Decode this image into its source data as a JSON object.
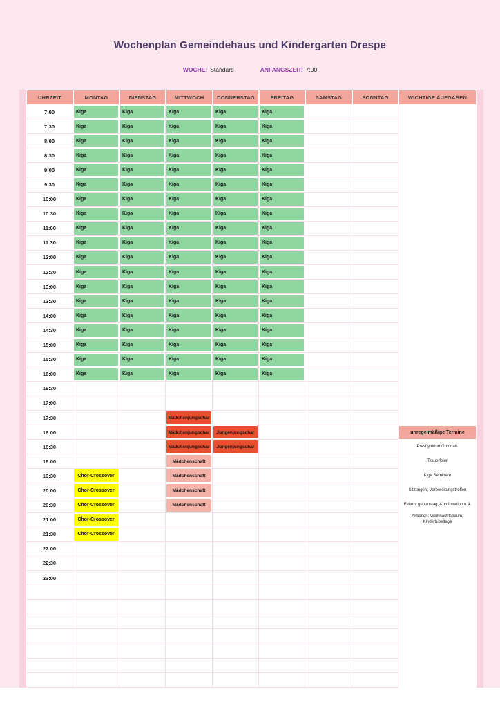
{
  "header": {
    "title": "Wochenplan Gemeindehaus und Kindergarten Drespe",
    "week_label": "WOCHE:",
    "week_value": "Standard",
    "start_label": "ANFANGSZEIT:",
    "start_value": "7:00"
  },
  "colors": {
    "page_bg": "#fce7ef",
    "edge_strip": "#f9d4e0",
    "header_bg": "#f2a69c",
    "grid_line": "#f7dde6",
    "kiga": "#8fd5a0",
    "jungschar": "#e74f2f",
    "maedchenschaft": "#f5b2a9",
    "chor": "#ffff00",
    "title_color": "#4a3a66",
    "label_color": "#9143a9"
  },
  "table": {
    "columns": [
      "UHRZEIT",
      "MONTAG",
      "DIENSTAG",
      "MITTWOCH",
      "DONNERSTAG",
      "FREITAG",
      "SAMSTAG",
      "SONNTAG",
      "WICHTIGE AUFGABEN"
    ],
    "times": [
      "7:00",
      "7:30",
      "8:00",
      "8:30",
      "9:00",
      "9:30",
      "10:00",
      "10:30",
      "11:00",
      "11:30",
      "12:00",
      "12:30",
      "13:00",
      "13:30",
      "14:00",
      "14:30",
      "15:00",
      "15:30",
      "16:00",
      "16:30",
      "17:00",
      "17:30",
      "18:00",
      "18:30",
      "19:00",
      "19:30",
      "20:00",
      "20:30",
      "21:00",
      "21:30",
      "22:00",
      "22:30",
      "23:00"
    ],
    "trailing_empty_rows": 7,
    "kiga": {
      "label": "Kiga",
      "days": [
        "MONTAG",
        "DIENSTAG",
        "MITTWOCH",
        "DONNERSTAG",
        "FREITAG"
      ],
      "from_time": "7:00",
      "to_time": "16:00"
    },
    "events": [
      {
        "time": "17:30",
        "day": "MITTWOCH",
        "label": "Mädchenjungschar",
        "type": "jungschar"
      },
      {
        "time": "18:00",
        "day": "MITTWOCH",
        "label": "Mädchenjungschar",
        "type": "jungschar"
      },
      {
        "time": "18:00",
        "day": "DONNERSTAG",
        "label": "Jungenjungschar",
        "type": "jungschar"
      },
      {
        "time": "18:30",
        "day": "MITTWOCH",
        "label": "Mädchenjungschar",
        "type": "jungschar"
      },
      {
        "time": "18:30",
        "day": "DONNERSTAG",
        "label": "Jungenjungschar",
        "type": "jungschar"
      },
      {
        "time": "19:00",
        "day": "MITTWOCH",
        "label": "Mädchenschaft",
        "type": "maedchenschaft"
      },
      {
        "time": "19:30",
        "day": "MONTAG",
        "label": "Chor-Crossover",
        "type": "chor"
      },
      {
        "time": "19:30",
        "day": "MITTWOCH",
        "label": "Mädchenschaft",
        "type": "maedchenschaft"
      },
      {
        "time": "20:00",
        "day": "MONTAG",
        "label": "Chor-Crossover",
        "type": "chor"
      },
      {
        "time": "20:00",
        "day": "MITTWOCH",
        "label": "Mädchenschaft",
        "type": "maedchenschaft"
      },
      {
        "time": "20:30",
        "day": "MONTAG",
        "label": "Chor-Crossover",
        "type": "chor"
      },
      {
        "time": "20:30",
        "day": "MITTWOCH",
        "label": "Mädchenschaft",
        "type": "maedchenschaft"
      },
      {
        "time": "21:00",
        "day": "MONTAG",
        "label": "Chor-Crossover",
        "type": "chor"
      },
      {
        "time": "21:30",
        "day": "MONTAG",
        "label": "Chor-Crossover",
        "type": "chor"
      }
    ],
    "important_tasks": {
      "box_title": "unregelmäßige Termine",
      "box_title_time": "18:00",
      "items": [
        {
          "time": "18:30",
          "label": "Presbyterium/2monatl."
        },
        {
          "time": "19:00",
          "label": "Trauerfeier"
        },
        {
          "time": "19:30",
          "label": "Kiga Seminare"
        },
        {
          "time": "20:00",
          "label": "Sitzungen, Vorbereitungstreffen"
        },
        {
          "time": "20:30",
          "label": "Feiern: geburtstag, Konfirmation u.ä."
        },
        {
          "time": "21:00",
          "label": "Aktionen: Weihnachtsbaum,\nKinderbibeltage"
        }
      ]
    }
  }
}
